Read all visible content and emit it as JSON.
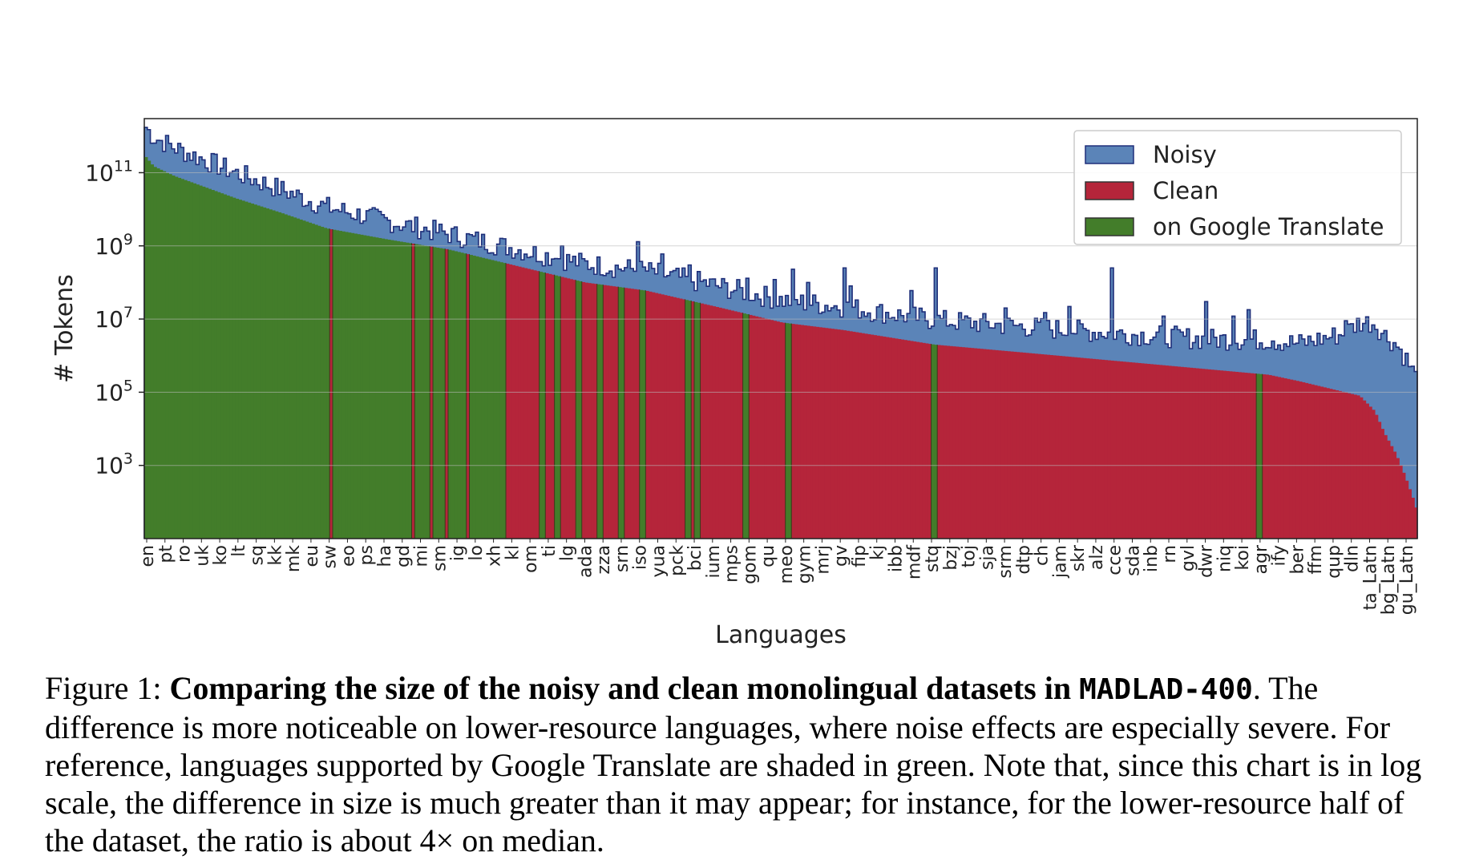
{
  "chart_data": {
    "type": "area",
    "scale_y": "log",
    "xlabel": "Languages",
    "ylabel": "# Tokens",
    "ylim": [
      10,
      3000000000000.0
    ],
    "y_ticks": [
      {
        "value": 1000,
        "base": "10",
        "exp": "3"
      },
      {
        "value": 100000,
        "base": "10",
        "exp": "5"
      },
      {
        "value": 10000000,
        "base": "10",
        "exp": "7"
      },
      {
        "value": 1000000000,
        "base": "10",
        "exp": "9"
      },
      {
        "value": 100000000000,
        "base": "10",
        "exp": "11"
      }
    ],
    "grid": true,
    "legend_position": "top-right",
    "series": [
      {
        "name": "Noisy",
        "color": "#5b84b8",
        "edge": "#1f2f7a"
      },
      {
        "name": "Clean",
        "color": "#b5253a"
      },
      {
        "name": "on Google Translate",
        "color": "#437d2a"
      }
    ],
    "x_tick_labels": [
      "en",
      "pt",
      "ro",
      "uk",
      "ko",
      "lt",
      "sq",
      "kk",
      "mk",
      "eu",
      "sw",
      "eo",
      "ps",
      "ha",
      "gd",
      "mi",
      "sm",
      "ig",
      "lo",
      "xh",
      "kl",
      "om",
      "ti",
      "lg",
      "ada",
      "zza",
      "srn",
      "iso",
      "yua",
      "pck",
      "bci",
      "ium",
      "mps",
      "gom",
      "qu",
      "meo",
      "gym",
      "mrj",
      "gv",
      "fip",
      "kj",
      "ibb",
      "mdf",
      "stq",
      "bzj",
      "toj",
      "sja",
      "srm",
      "dtp",
      "ch",
      "jam",
      "skr",
      "alz",
      "cce",
      "sda",
      "inb",
      "rn",
      "gvl",
      "dwr",
      "niq",
      "koi",
      "agr",
      "ify",
      "ber",
      "ffm",
      "qup",
      "dln",
      "ta_Latn",
      "bg_Latn",
      "gu_Latn"
    ],
    "n_languages": 419,
    "clean_profile": [
      [
        0,
        300000000000.0
      ],
      [
        3,
        150000000000.0
      ],
      [
        10,
        80000000000.0
      ],
      [
        30,
        20000000000.0
      ],
      [
        45,
        8000000000.0
      ],
      [
        60,
        3000000000.0
      ],
      [
        80,
        1500000000.0
      ],
      [
        100,
        800000000.0
      ],
      [
        115,
        400000000.0
      ],
      [
        130,
        200000000.0
      ],
      [
        145,
        100000000.0
      ],
      [
        165,
        60000000.0
      ],
      [
        190,
        20000000.0
      ],
      [
        210,
        8000000.0
      ],
      [
        230,
        5000000.0
      ],
      [
        260,
        2000000.0
      ],
      [
        290,
        1200000.0
      ],
      [
        330,
        600000.0
      ],
      [
        370,
        300000.0
      ],
      [
        380,
        200000.0
      ],
      [
        400,
        80000.0
      ],
      [
        405,
        30000.0
      ],
      [
        408,
        8000.0
      ],
      [
        412,
        2000.0
      ],
      [
        415,
        500
      ],
      [
        418,
        100
      ],
      [
        419,
        50
      ]
    ],
    "noisy_ratio_profile": [
      [
        0,
        5
      ],
      [
        100,
        2
      ],
      [
        150,
        2.5
      ],
      [
        200,
        3
      ],
      [
        300,
        4
      ],
      [
        350,
        5
      ],
      [
        380,
        8
      ],
      [
        395,
        30
      ],
      [
        405,
        200
      ],
      [
        412,
        800
      ],
      [
        419,
        3000
      ]
    ],
    "noisy_spikes": [
      [
        39,
        60000000000.0
      ],
      [
        55,
        3000000000.0
      ],
      [
        65,
        3000000000.0
      ],
      [
        80,
        2000000000.0
      ],
      [
        100,
        250000000.0
      ],
      [
        117,
        300000000.0
      ],
      [
        135,
        450000000.0
      ],
      [
        137,
        1000000000.0
      ],
      [
        141,
        150000000.0
      ],
      [
        162,
        1300000000.0
      ],
      [
        163,
        100000000.0
      ],
      [
        170,
        600000000.0
      ],
      [
        179,
        300000000.0
      ],
      [
        186,
        120000000.0
      ],
      [
        198,
        130000000.0
      ],
      [
        207,
        120000000.0
      ],
      [
        213,
        230000000.0
      ],
      [
        218,
        100000000.0
      ],
      [
        230,
        250000000.0
      ],
      [
        232,
        80000000.0
      ],
      [
        252,
        60000000.0
      ],
      [
        260,
        250000000.0
      ],
      [
        283,
        20000000.0
      ],
      [
        296,
        15000000.0
      ],
      [
        304,
        22000000.0
      ],
      [
        318,
        250000000.0
      ],
      [
        335,
        12000000.0
      ],
      [
        349,
        30000000.0
      ],
      [
        358,
        12000000.0
      ],
      [
        363,
        18000000.0
      ],
      [
        371,
        2500000.0
      ],
      [
        380,
        3000000.0
      ],
      [
        395,
        9000000.0
      ],
      [
        410,
        1200000.0
      ]
    ],
    "google_translate_ranges": [
      [
        0,
        60
      ],
      [
        62,
        87
      ],
      [
        89,
        93
      ],
      [
        95,
        98
      ],
      [
        100,
        105
      ],
      [
        107,
        118
      ],
      [
        130,
        131
      ],
      [
        135,
        136
      ],
      [
        142,
        143
      ],
      [
        149,
        150
      ],
      [
        156,
        157
      ],
      [
        163,
        164
      ],
      [
        178,
        179
      ],
      [
        181,
        182
      ],
      [
        197,
        198
      ],
      [
        211,
        212
      ],
      [
        259,
        260
      ],
      [
        366,
        367
      ]
    ]
  },
  "caption": {
    "figure_label": "Figure 1:",
    "bold_text": "Comparing the size of the noisy and clean monolingual datasets in",
    "dataset_name": "MADLAD-400",
    "body": ". The difference is more noticeable on lower-resource languages, where noise effects are especially severe. For reference, languages supported by Google Translate are shaded in green. Note that, since this chart is in log scale, the difference in size is much greater than it may appear; for instance, for the lower-resource half of the dataset, the ratio is about 4× on median."
  }
}
